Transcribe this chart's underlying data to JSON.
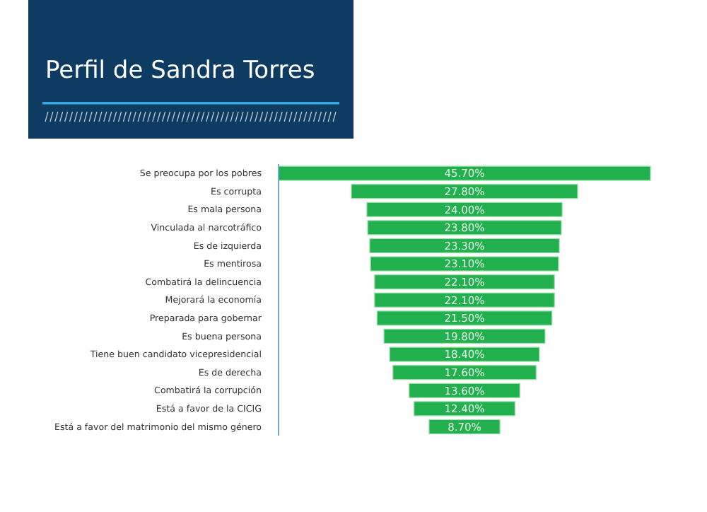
{
  "chart_data": {
    "type": "other",
    "title": "Perfil de Sandra Torres",
    "categories": [
      "Se preocupa por los pobres",
      "Es corrupta",
      "Es mala persona",
      "Vinculada al narcotráfico",
      "Es de izquierda",
      "Es mentirosa",
      "Combatirá la delincuencia",
      "Mejorará la economía",
      "Preparada para gobernar",
      "Es buena persona",
      "Tiene buen candidato vicepresidencial",
      "Es de derecha",
      "Combatirá la corrupción",
      "Está a favor de la CICIG",
      "Está a favor del matrimonio del mismo género"
    ],
    "values": [
      45.7,
      27.8,
      24.0,
      23.8,
      23.3,
      23.1,
      22.1,
      22.1,
      21.5,
      19.8,
      18.4,
      17.6,
      13.6,
      12.4,
      8.7
    ],
    "value_labels": [
      "45.70%",
      "27.80%",
      "24.00%",
      "23.80%",
      "23.30%",
      "23.10%",
      "22.10%",
      "22.10%",
      "21.50%",
      "19.80%",
      "18.40%",
      "17.60%",
      "13.60%",
      "12.40%",
      "8.70%"
    ],
    "color": "#22b04e"
  }
}
